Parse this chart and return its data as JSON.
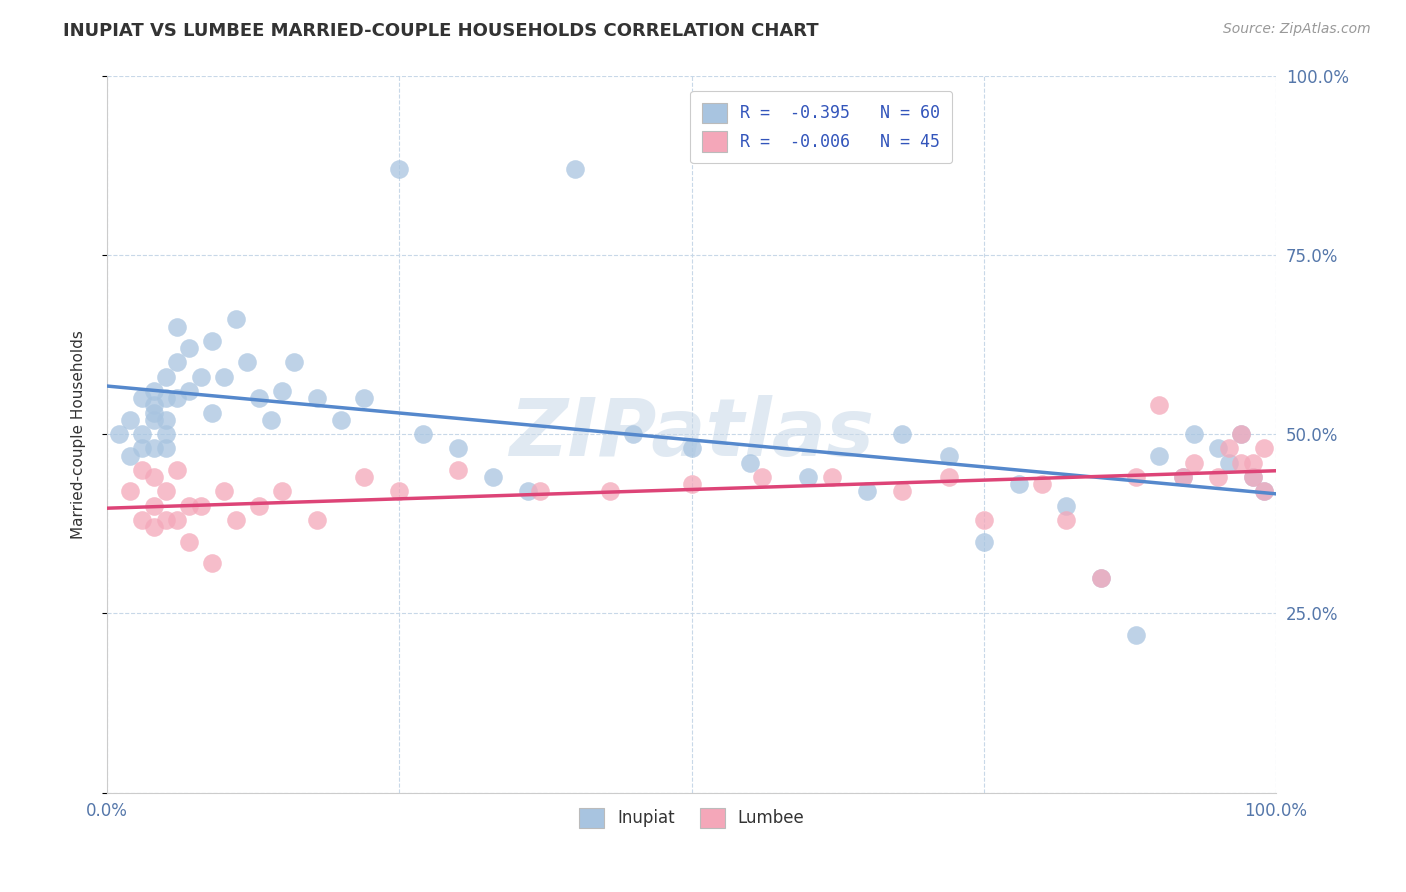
{
  "title": "INUPIAT VS LUMBEE MARRIED-COUPLE HOUSEHOLDS CORRELATION CHART",
  "source": "Source: ZipAtlas.com",
  "ylabel": "Married-couple Households",
  "watermark": "ZIPatlas",
  "legend_top": [
    {
      "label": "R =  -0.395   N = 60",
      "color": "#a8c4e0"
    },
    {
      "label": "R =  -0.006   N = 45",
      "color": "#f4a7b9"
    }
  ],
  "legend_bottom": [
    {
      "label": "Inupiat",
      "color": "#a8c4e0"
    },
    {
      "label": "Lumbee",
      "color": "#f4a7b9"
    }
  ],
  "inupiat_color": "#a8c4e0",
  "lumbee_color": "#f4a7b9",
  "trend_inupiat_color": "#5588cc",
  "trend_lumbee_color": "#dd4477",
  "background_color": "#ffffff",
  "grid_color": "#c8d8e8",
  "xlim": [
    0,
    1
  ],
  "ylim": [
    0,
    1
  ],
  "xticks": [
    0,
    0.25,
    0.5,
    0.75,
    1.0
  ],
  "xticklabels": [
    "0.0%",
    "",
    "",
    "",
    "100.0%"
  ],
  "yticks": [
    0.0,
    0.25,
    0.5,
    0.75,
    1.0
  ],
  "yticklabels_right": [
    "",
    "25.0%",
    "50.0%",
    "75.0%",
    "100.0%"
  ],
  "inupiat_x": [
    0.01,
    0.02,
    0.02,
    0.03,
    0.03,
    0.03,
    0.04,
    0.04,
    0.04,
    0.04,
    0.04,
    0.05,
    0.05,
    0.05,
    0.05,
    0.05,
    0.06,
    0.06,
    0.06,
    0.07,
    0.07,
    0.08,
    0.09,
    0.09,
    0.1,
    0.11,
    0.12,
    0.13,
    0.14,
    0.15,
    0.16,
    0.18,
    0.2,
    0.22,
    0.25,
    0.27,
    0.3,
    0.33,
    0.36,
    0.4,
    0.45,
    0.5,
    0.55,
    0.6,
    0.65,
    0.68,
    0.72,
    0.75,
    0.78,
    0.82,
    0.85,
    0.88,
    0.9,
    0.92,
    0.93,
    0.95,
    0.96,
    0.97,
    0.98,
    0.99
  ],
  "inupiat_y": [
    0.5,
    0.52,
    0.47,
    0.55,
    0.5,
    0.48,
    0.54,
    0.52,
    0.48,
    0.56,
    0.53,
    0.58,
    0.52,
    0.5,
    0.48,
    0.55,
    0.65,
    0.6,
    0.55,
    0.62,
    0.56,
    0.58,
    0.63,
    0.53,
    0.58,
    0.66,
    0.6,
    0.55,
    0.52,
    0.56,
    0.6,
    0.55,
    0.52,
    0.55,
    0.87,
    0.5,
    0.48,
    0.44,
    0.42,
    0.87,
    0.5,
    0.48,
    0.46,
    0.44,
    0.42,
    0.5,
    0.47,
    0.35,
    0.43,
    0.4,
    0.3,
    0.22,
    0.47,
    0.44,
    0.5,
    0.48,
    0.46,
    0.5,
    0.44,
    0.42
  ],
  "lumbee_x": [
    0.02,
    0.03,
    0.03,
    0.04,
    0.04,
    0.04,
    0.05,
    0.05,
    0.06,
    0.06,
    0.07,
    0.07,
    0.08,
    0.09,
    0.1,
    0.11,
    0.13,
    0.15,
    0.18,
    0.22,
    0.25,
    0.3,
    0.37,
    0.43,
    0.5,
    0.56,
    0.62,
    0.68,
    0.72,
    0.75,
    0.8,
    0.82,
    0.85,
    0.88,
    0.9,
    0.92,
    0.93,
    0.95,
    0.96,
    0.97,
    0.97,
    0.98,
    0.98,
    0.99,
    0.99
  ],
  "lumbee_y": [
    0.42,
    0.45,
    0.38,
    0.44,
    0.4,
    0.37,
    0.42,
    0.38,
    0.45,
    0.38,
    0.4,
    0.35,
    0.4,
    0.32,
    0.42,
    0.38,
    0.4,
    0.42,
    0.38,
    0.44,
    0.42,
    0.45,
    0.42,
    0.42,
    0.43,
    0.44,
    0.44,
    0.42,
    0.44,
    0.38,
    0.43,
    0.38,
    0.3,
    0.44,
    0.54,
    0.44,
    0.46,
    0.44,
    0.48,
    0.5,
    0.46,
    0.44,
    0.46,
    0.42,
    0.48
  ]
}
